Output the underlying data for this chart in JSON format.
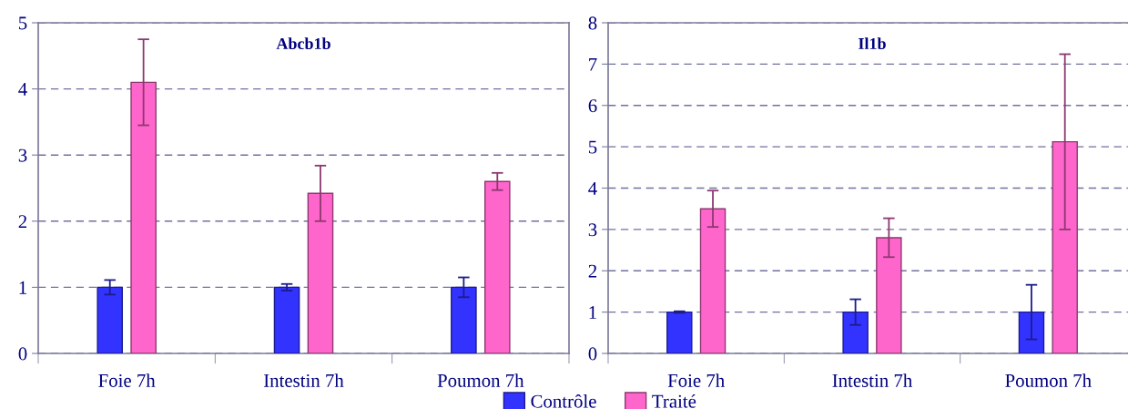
{
  "chart_data": [
    {
      "type": "bar",
      "title": "Abcb1b",
      "categories": [
        "Foie 7h",
        "Intestin 7h",
        "Poumon 7h"
      ],
      "series": [
        {
          "name": "Contrôle",
          "color": "#3333ff",
          "values": [
            1,
            1,
            1
          ],
          "errors": [
            0.11,
            0.05,
            0.15
          ]
        },
        {
          "name": "Traité",
          "color": "#ff66cc",
          "values": [
            4.1,
            2.42,
            2.6
          ],
          "errors": [
            0.65,
            0.42,
            0.13
          ]
        }
      ],
      "ylim": [
        0,
        5
      ],
      "yticks": [
        0,
        1,
        2,
        3,
        4,
        5
      ],
      "grid": "y",
      "legend": "bottom"
    },
    {
      "type": "bar",
      "title": "Il1b",
      "categories": [
        "Foie 7h",
        "Intestin 7h",
        "Poumon 7h"
      ],
      "series": [
        {
          "name": "Contrôle",
          "color": "#3333ff",
          "values": [
            1,
            1,
            1
          ],
          "errors": [
            0.02,
            0.31,
            0.66
          ]
        },
        {
          "name": "Traité",
          "color": "#ff66cc",
          "values": [
            3.5,
            2.8,
            5.12
          ],
          "errors": [
            0.44,
            0.47,
            2.12
          ]
        }
      ],
      "ylim": [
        0,
        8
      ],
      "yticks": [
        0,
        1,
        2,
        3,
        4,
        5,
        6,
        7,
        8
      ],
      "grid": "y"
    }
  ]
}
